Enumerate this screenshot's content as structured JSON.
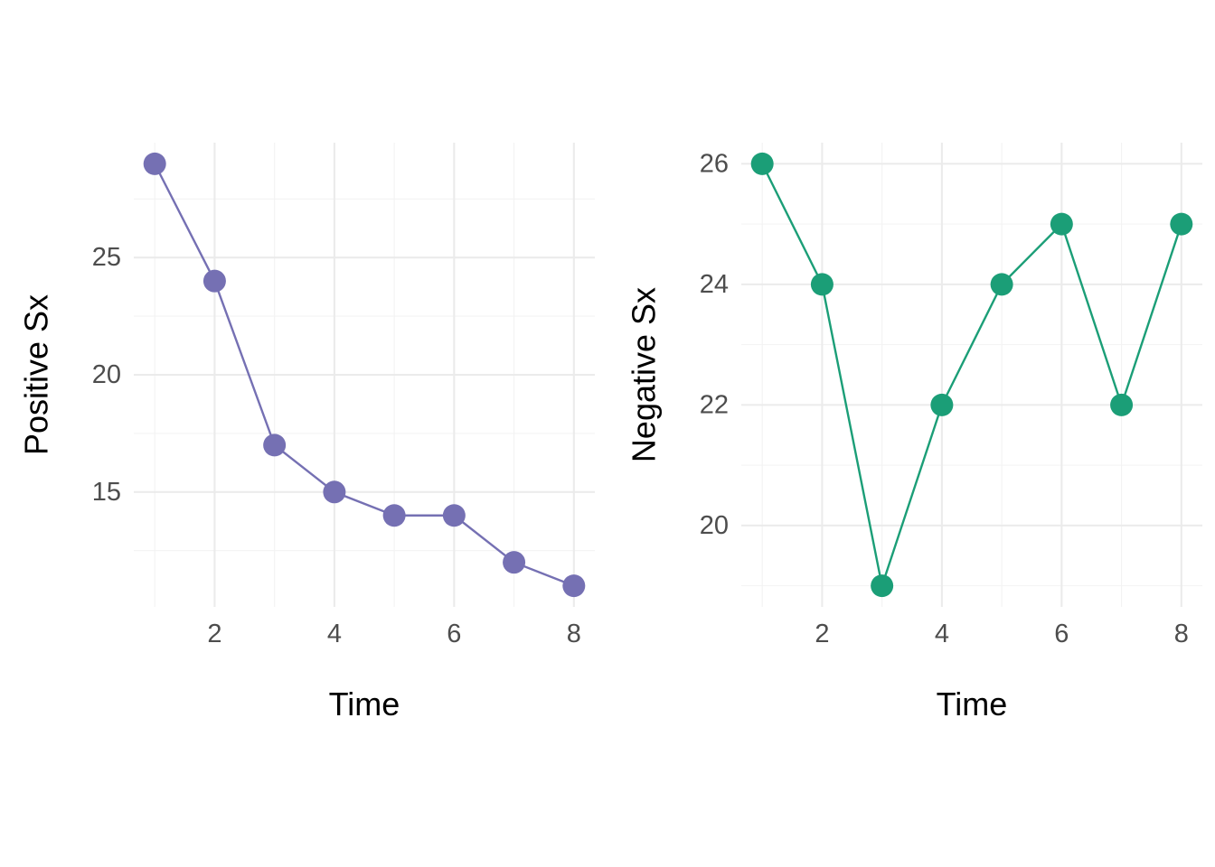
{
  "chart_data": [
    {
      "type": "line",
      "title": "",
      "xlabel": "Time",
      "ylabel": "Positive Sx",
      "x": [
        1,
        2,
        3,
        4,
        5,
        6,
        7,
        8
      ],
      "series": [
        {
          "values": [
            29,
            24,
            17,
            15,
            14,
            14,
            12,
            11
          ],
          "color": "#7570b3"
        }
      ],
      "xlim": [
        0.65,
        8.35
      ],
      "ylim": [
        10.1,
        29.9
      ],
      "x_ticks": [
        2,
        4,
        6,
        8
      ],
      "x_minor_ticks": [
        1,
        3,
        5,
        7
      ],
      "y_ticks": [
        15,
        20,
        25
      ],
      "y_minor_ticks": [
        12.5,
        17.5,
        22.5,
        27.5
      ],
      "grid": true,
      "legend": "none"
    },
    {
      "type": "line",
      "title": "",
      "xlabel": "Time",
      "ylabel": "Negative Sx",
      "x": [
        1,
        2,
        3,
        4,
        5,
        6,
        7,
        8
      ],
      "series": [
        {
          "values": [
            26,
            24,
            19,
            22,
            24,
            25,
            22,
            25
          ],
          "color": "#1b9e77"
        }
      ],
      "xlim": [
        0.65,
        8.35
      ],
      "ylim": [
        18.65,
        26.35
      ],
      "x_ticks": [
        2,
        4,
        6,
        8
      ],
      "x_minor_ticks": [
        1,
        3,
        5,
        7
      ],
      "y_ticks": [
        20,
        22,
        24,
        26
      ],
      "y_minor_ticks": [
        19,
        21,
        23,
        25
      ],
      "grid": true,
      "legend": "none"
    }
  ]
}
